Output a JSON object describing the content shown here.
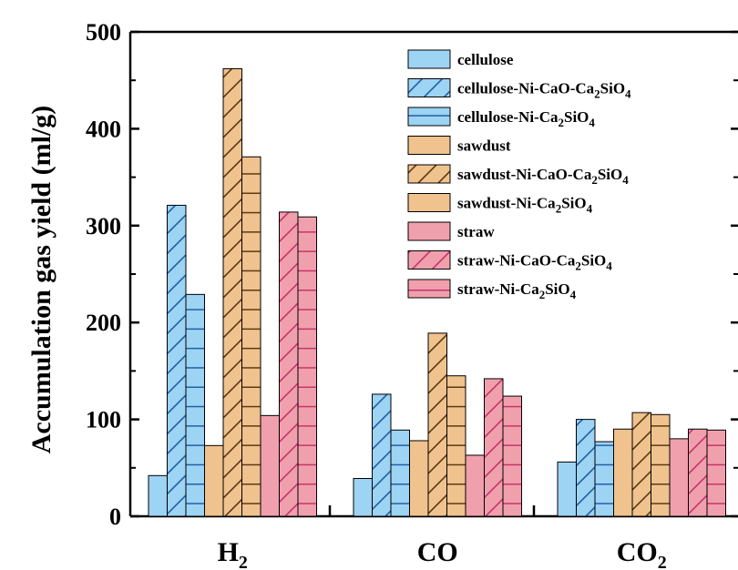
{
  "chart_data": {
    "type": "bar",
    "ylabel": "Accumulation gas yield (ml/g)",
    "ylim": [
      0,
      500
    ],
    "yticks": [
      "0",
      "100",
      "200",
      "300",
      "400",
      "500"
    ],
    "categories": [
      "H2",
      "CO",
      "CO2"
    ],
    "category_labels": [
      {
        "main": "H",
        "sub": "2"
      },
      {
        "main": "CO",
        "sub": ""
      },
      {
        "main": "CO",
        "sub": "2"
      }
    ],
    "legend_position": "top-right",
    "series": [
      {
        "name": "cellulose",
        "legend": [
          {
            "t": "cellulose",
            "sub": false
          }
        ],
        "color": "#9dd3f3",
        "pattern": "none",
        "values": [
          42,
          39,
          56
        ]
      },
      {
        "name": "cellulose-Ni-CaO-Ca2SiO4",
        "legend": [
          {
            "t": "cellulose-Ni-CaO-Ca",
            "sub": false
          },
          {
            "t": "2",
            "sub": true
          },
          {
            "t": "SiO",
            "sub": false
          },
          {
            "t": "4",
            "sub": true
          }
        ],
        "color": "#9dd3f3",
        "pattern": "diagonal",
        "values": [
          321,
          126,
          100
        ]
      },
      {
        "name": "cellulose-Ni-Ca2SiO4",
        "legend": [
          {
            "t": "cellulose-Ni-Ca",
            "sub": false
          },
          {
            "t": "2",
            "sub": true
          },
          {
            "t": "SiO",
            "sub": false
          },
          {
            "t": "4",
            "sub": true
          }
        ],
        "color": "#9dd3f3",
        "pattern": "horizontal",
        "values": [
          229,
          89,
          77
        ]
      },
      {
        "name": "sawdust",
        "legend": [
          {
            "t": "sawdust",
            "sub": false
          }
        ],
        "color": "#f0c28e",
        "pattern": "none",
        "values": [
          73,
          78,
          90
        ]
      },
      {
        "name": "sawdust-Ni-CaO-Ca2SiO4",
        "legend": [
          {
            "t": "sawdust-Ni-CaO-Ca",
            "sub": false
          },
          {
            "t": "2",
            "sub": true
          },
          {
            "t": "SiO",
            "sub": false
          },
          {
            "t": "4",
            "sub": true
          }
        ],
        "color": "#f0c28e",
        "pattern": "diagonal",
        "values": [
          462,
          189,
          107
        ]
      },
      {
        "name": "sawdust-Ni-Ca2SiO4",
        "legend": [
          {
            "t": "sawdust-Ni-Ca",
            "sub": false
          },
          {
            "t": "2",
            "sub": true
          },
          {
            "t": "SiO",
            "sub": false
          },
          {
            "t": "4",
            "sub": true
          }
        ],
        "color": "#f0c28e",
        "pattern": "horizontal",
        "values": [
          371,
          145,
          105
        ]
      },
      {
        "name": "straw",
        "legend": [
          {
            "t": "straw",
            "sub": false
          }
        ],
        "color": "#f0a0ad",
        "pattern": "none",
        "values": [
          104,
          63,
          80
        ]
      },
      {
        "name": "straw-Ni-CaO-Ca2SiO4",
        "legend": [
          {
            "t": "straw-Ni-CaO-Ca",
            "sub": false
          },
          {
            "t": "2",
            "sub": true
          },
          {
            "t": "SiO",
            "sub": false
          },
          {
            "t": "4",
            "sub": true
          }
        ],
        "color": "#f0a0ad",
        "pattern": "diagonal",
        "values": [
          314,
          142,
          90
        ]
      },
      {
        "name": "straw-Ni-Ca2SiO4",
        "legend": [
          {
            "t": "straw-Ni-Ca",
            "sub": false
          },
          {
            "t": "2",
            "sub": true
          },
          {
            "t": "SiO",
            "sub": false
          },
          {
            "t": "4",
            "sub": true
          }
        ],
        "color": "#f0a0ad",
        "pattern": "horizontal",
        "values": [
          309,
          124,
          89
        ]
      }
    ],
    "pattern_color": {
      "diagonal": "#1f5fa8",
      "horizontal": "#1a3d6b"
    },
    "pattern_colors_by_group": {
      "cellulose": "#1f5fa8",
      "sawdust": "#5a3a12",
      "straw": "#c8336a"
    }
  }
}
